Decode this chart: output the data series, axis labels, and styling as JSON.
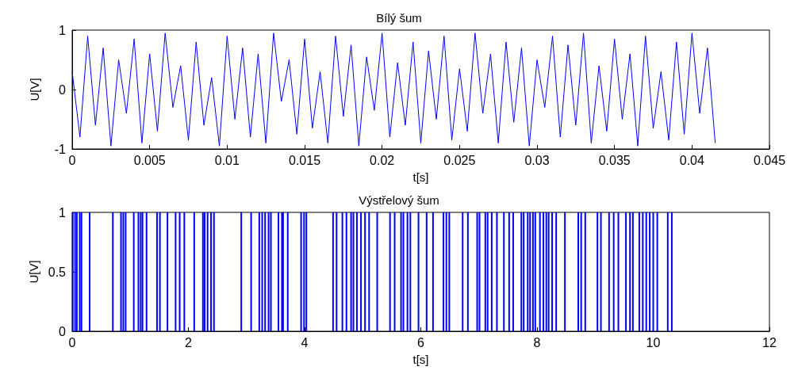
{
  "chart_data": [
    {
      "type": "line",
      "title": "Bílý šum",
      "xlabel": "t[s]",
      "ylabel": "U[V]",
      "xlim": [
        0,
        0.045
      ],
      "xticks": [
        0,
        0.005,
        0.01,
        0.015,
        0.02,
        0.025,
        0.03,
        0.035,
        0.04,
        0.045
      ],
      "ylim": [
        -1,
        1
      ],
      "yticks": [
        -1,
        0,
        1
      ],
      "grid": false,
      "marker": "none",
      "line_style": "solid",
      "series": [
        {
          "color": "#0000ff",
          "x": [
            0,
            0.0005,
            0.001,
            0.0015,
            0.002,
            0.0025,
            0.003,
            0.0035,
            0.004,
            0.0045,
            0.005,
            0.0055,
            0.006,
            0.0065,
            0.007,
            0.0075,
            0.008,
            0.0085,
            0.009,
            0.0095,
            0.01,
            0.0105,
            0.011,
            0.0115,
            0.012,
            0.0125,
            0.013,
            0.0135,
            0.014,
            0.0145,
            0.015,
            0.0155,
            0.016,
            0.0165,
            0.017,
            0.0175,
            0.018,
            0.0185,
            0.019,
            0.0195,
            0.02,
            0.0205,
            0.021,
            0.0215,
            0.022,
            0.0225,
            0.023,
            0.0235,
            0.024,
            0.0245,
            0.025,
            0.0255,
            0.026,
            0.0265,
            0.027,
            0.0275,
            0.028,
            0.0285,
            0.029,
            0.0295,
            0.03,
            0.0305,
            0.031,
            0.0315,
            0.032,
            0.0325,
            0.033,
            0.0335,
            0.034,
            0.0345,
            0.035,
            0.0355,
            0.036,
            0.0365,
            0.037,
            0.0375,
            0.038,
            0.0385,
            0.039,
            0.0395,
            0.04,
            0.0405,
            0.041,
            0.0415
          ],
          "values": [
            0.3,
            -0.8,
            0.9,
            -0.6,
            0.7,
            -0.95,
            0.5,
            -0.4,
            0.85,
            -0.9,
            0.6,
            -0.7,
            0.95,
            -0.3,
            0.4,
            -0.85,
            0.8,
            -0.6,
            0.2,
            -0.95,
            0.9,
            -0.5,
            0.7,
            -0.8,
            0.6,
            -0.9,
            0.95,
            -0.2,
            0.5,
            -0.75,
            0.85,
            -0.65,
            0.3,
            -0.9,
            0.9,
            -0.45,
            0.75,
            -0.95,
            0.55,
            -0.35,
            0.95,
            -0.8,
            0.45,
            -0.6,
            0.8,
            -0.9,
            0.65,
            -0.5,
            0.9,
            -0.85,
            0.35,
            -0.7,
            0.95,
            -0.4,
            0.6,
            -0.9,
            0.8,
            -0.55,
            0.7,
            -0.95,
            0.5,
            -0.3,
            0.9,
            -0.8,
            0.75,
            -0.6,
            0.95,
            -0.9,
            0.4,
            -0.7,
            0.85,
            -0.5,
            0.6,
            -0.95,
            0.9,
            -0.65,
            0.3,
            -0.85,
            0.8,
            -0.75,
            0.95,
            -0.4,
            0.7,
            -0.9
          ]
        }
      ]
    },
    {
      "type": "bar",
      "title": "Výstřelový šum",
      "xlabel": "t[s]",
      "ylabel": "U[V]",
      "xlim": [
        0,
        12
      ],
      "xticks": [
        0,
        2,
        4,
        6,
        8,
        10,
        12
      ],
      "ylim": [
        0,
        1
      ],
      "yticks": [
        0,
        0.5,
        1
      ],
      "grid": false,
      "series": [
        {
          "color": "#0000ff",
          "x": [
            0.01,
            0.05,
            0.08,
            0.13,
            0.16,
            0.3,
            0.7,
            0.84,
            0.88,
            0.92,
            1.06,
            1.14,
            1.18,
            1.21,
            1.28,
            1.46,
            1.51,
            1.64,
            1.78,
            1.85,
            1.93,
            2.1,
            2.25,
            2.28,
            2.33,
            2.39,
            2.44,
            2.91,
            3.08,
            3.22,
            3.27,
            3.32,
            3.38,
            3.42,
            3.55,
            3.61,
            3.63,
            3.71,
            3.94,
            3.99,
            4.03,
            4.49,
            4.55,
            4.65,
            4.72,
            4.8,
            4.84,
            4.9,
            4.97,
            5.04,
            5.11,
            5.25,
            5.47,
            5.55,
            5.66,
            5.7,
            5.77,
            5.82,
            5.96,
            6.1,
            6.21,
            6.39,
            6.44,
            6.49,
            6.72,
            6.81,
            6.97,
            7.01,
            7.11,
            7.15,
            7.22,
            7.31,
            7.43,
            7.52,
            7.59,
            7.73,
            7.77,
            7.84,
            7.88,
            7.93,
            7.97,
            8.05,
            8.11,
            8.16,
            8.2,
            8.26,
            8.33,
            8.48,
            8.71,
            8.76,
            8.83,
            9.04,
            9.1,
            9.24,
            9.32,
            9.4,
            9.53,
            9.6,
            9.65,
            9.76,
            9.82,
            9.88,
            9.94,
            10,
            10.07,
            10.25,
            10.32
          ],
          "values": [
            1,
            1,
            1,
            1,
            1,
            1,
            1,
            1,
            1,
            1,
            1,
            1,
            1,
            1,
            1,
            1,
            1,
            1,
            1,
            1,
            1,
            1,
            1,
            1,
            1,
            1,
            1,
            1,
            1,
            1,
            1,
            1,
            1,
            1,
            1,
            1,
            1,
            1,
            1,
            1,
            1,
            1,
            1,
            1,
            1,
            1,
            1,
            1,
            1,
            1,
            1,
            1,
            1,
            1,
            1,
            1,
            1,
            1,
            1,
            1,
            1,
            1,
            1,
            1,
            1,
            1,
            1,
            1,
            1,
            1,
            1,
            1,
            1,
            1,
            1,
            1,
            1,
            1,
            1,
            1,
            1,
            1,
            1,
            1,
            1,
            1,
            1,
            1,
            1,
            1,
            1,
            1,
            1,
            1,
            1,
            1,
            1,
            1,
            1,
            1,
            1,
            1,
            1,
            1,
            1,
            1,
            1
          ]
        }
      ]
    }
  ]
}
